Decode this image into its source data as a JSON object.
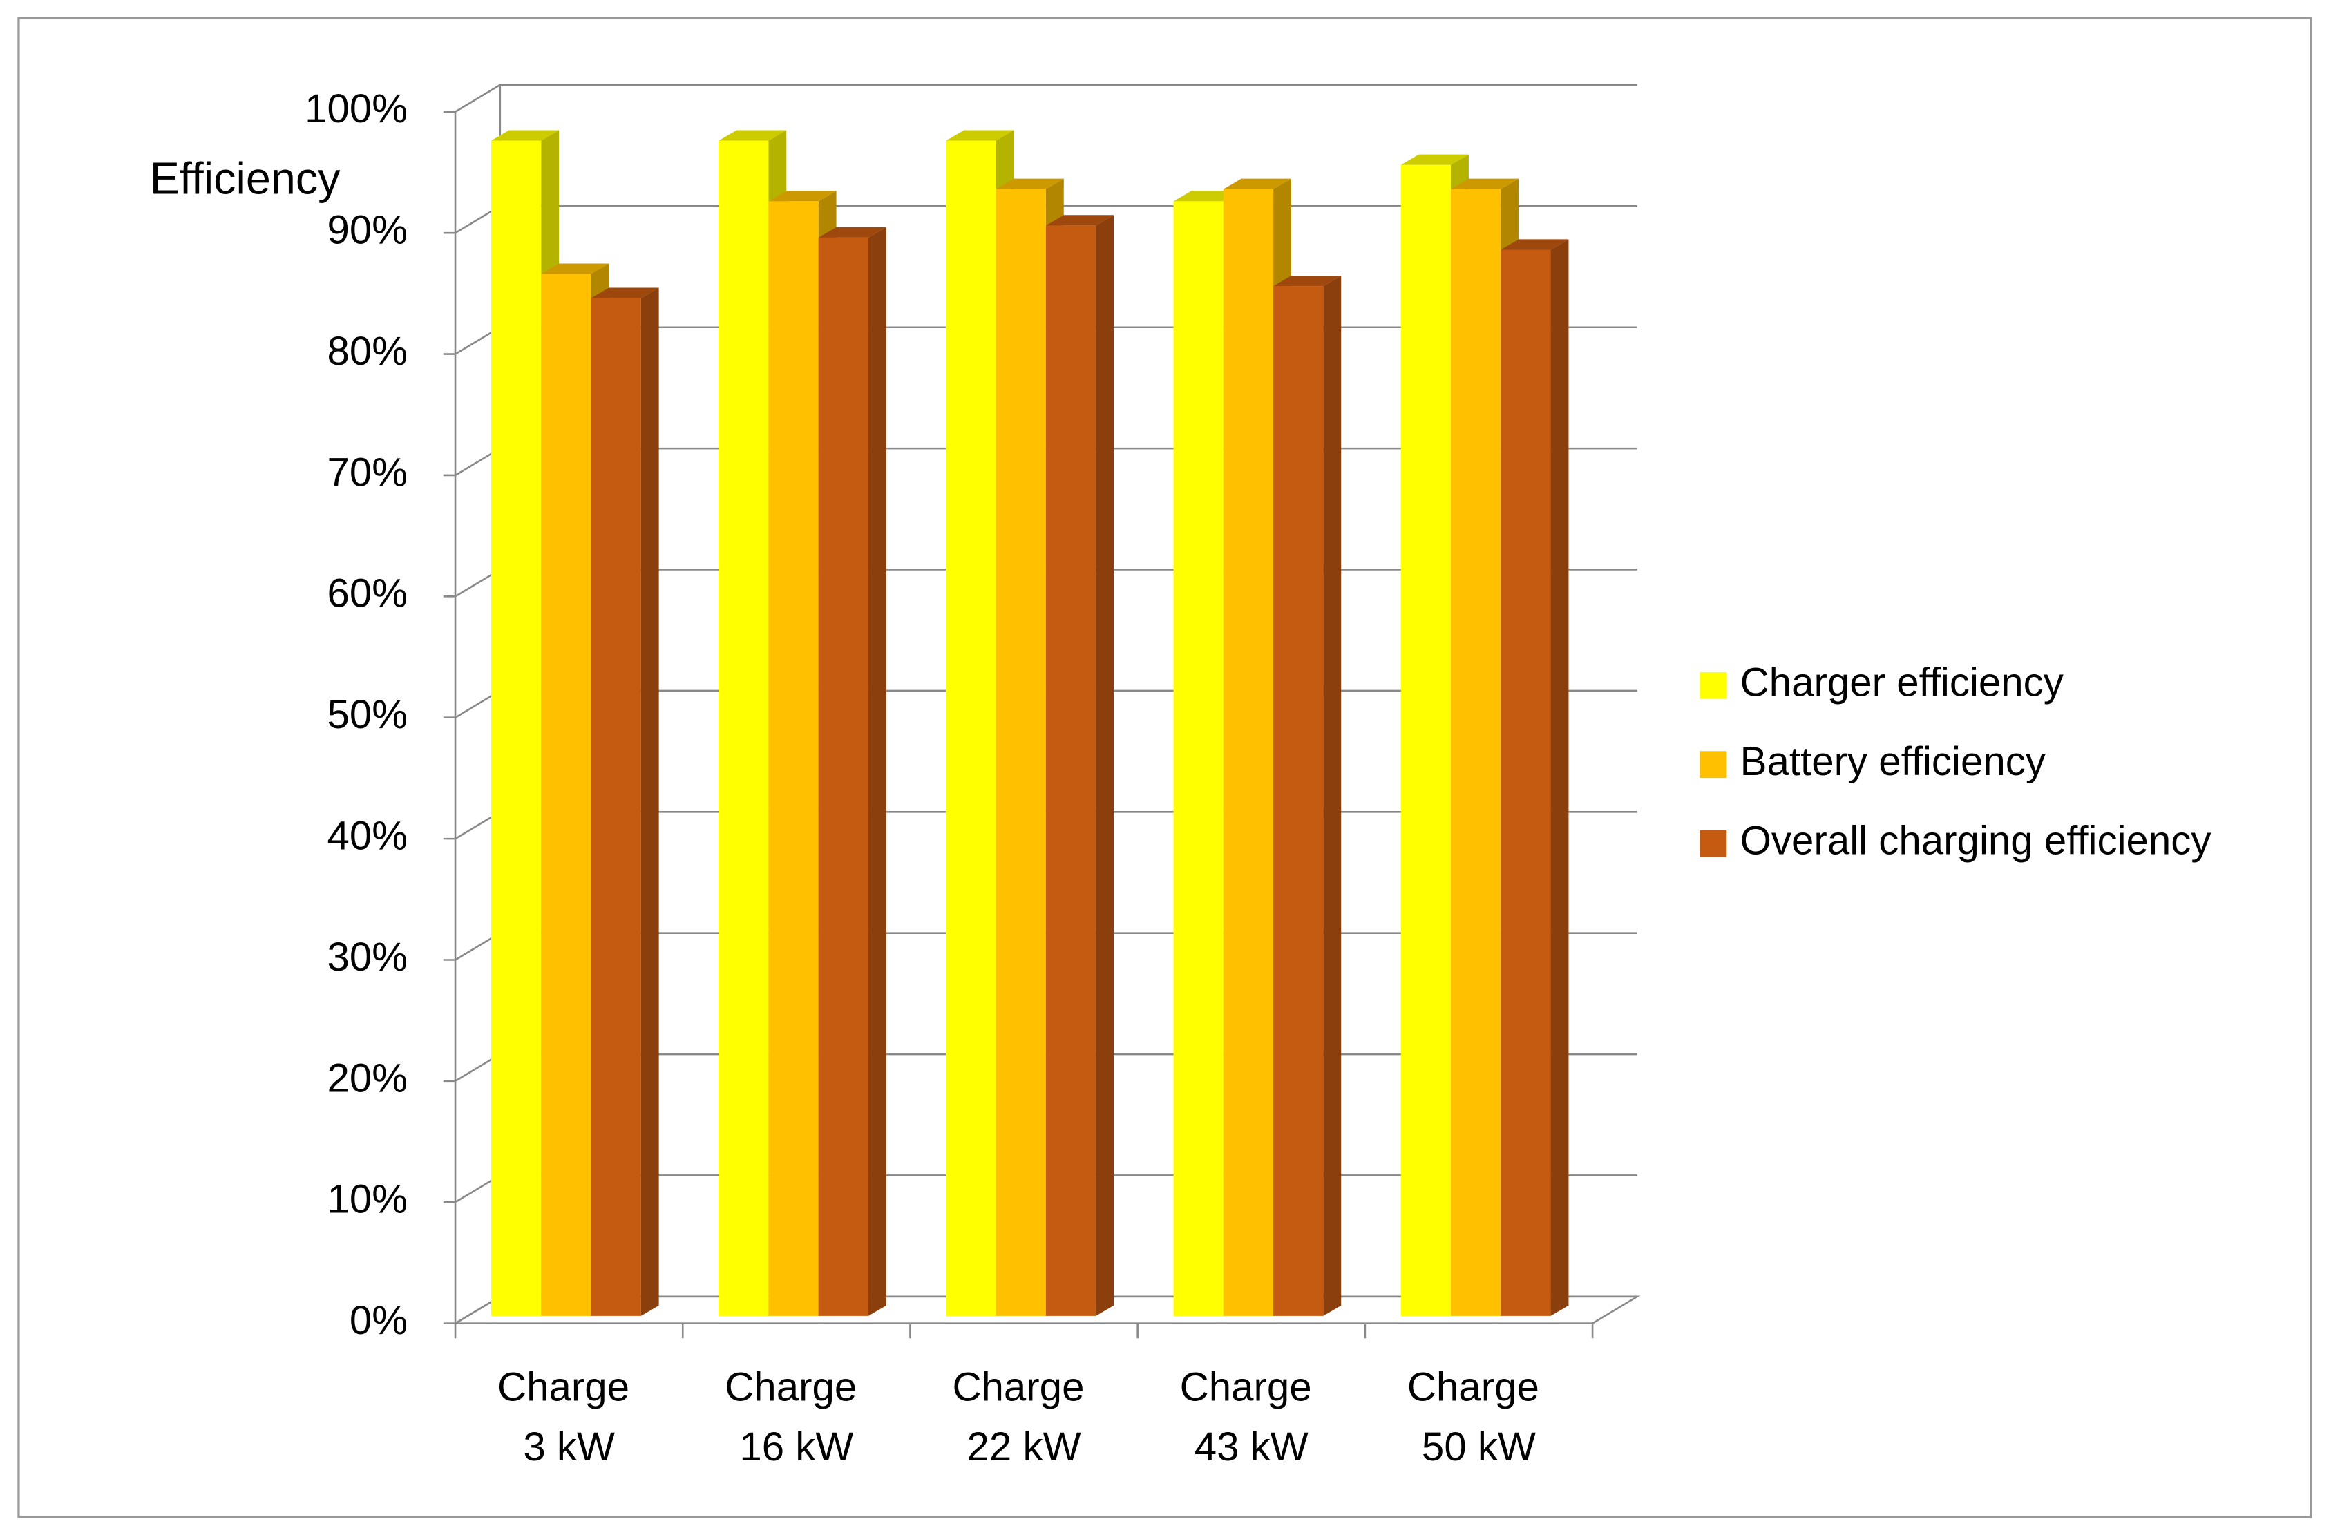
{
  "chart_data": {
    "type": "bar3d",
    "y_label": "Efficiency",
    "categories": [
      "Charge 3 kW",
      "Charge 16 kW",
      "Charge 22 kW",
      "Charge 43 kW",
      "Charge 50 kW"
    ],
    "series": [
      {
        "name": "Charger efficiency",
        "color": "#ffff00",
        "values": [
          97,
          97,
          97,
          92,
          95
        ]
      },
      {
        "name": "Battery efficiency",
        "color": "#ffc000",
        "values": [
          86,
          92,
          93,
          93,
          93
        ]
      },
      {
        "name": "Overall charging efficiency",
        "color": "#c55a11",
        "values": [
          84,
          89,
          90,
          85,
          88
        ]
      }
    ],
    "ylim": [
      0,
      100
    ],
    "yticks": [
      {
        "value": 0,
        "label": "0%"
      },
      {
        "value": 10,
        "label": "10%"
      },
      {
        "value": 20,
        "label": "20%"
      },
      {
        "value": 30,
        "label": "30%"
      },
      {
        "value": 40,
        "label": "40%"
      },
      {
        "value": 50,
        "label": "50%"
      },
      {
        "value": 60,
        "label": "60%"
      },
      {
        "value": 70,
        "label": "70%"
      },
      {
        "value": 80,
        "label": "80%"
      },
      {
        "value": 90,
        "label": "90%"
      },
      {
        "value": 100,
        "label": "100%"
      }
    ],
    "grid": true,
    "legend": "right"
  }
}
